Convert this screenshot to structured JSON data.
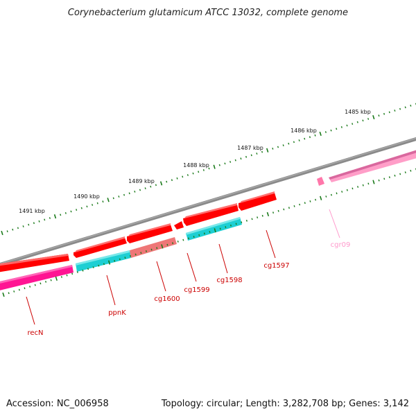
{
  "title": "Corynebacterium glutamicum ATCC 13032, complete genome",
  "footer": {
    "accession": "Accession: NC_006958",
    "summary": "Topology: circular; Length: 3,282,708 bp; Genes: 3,142"
  },
  "colors": {
    "backbone": "#808080",
    "tick": "#1a7a1a",
    "cds": "#ff0000",
    "cds_muted": "#ee7777",
    "cyan": "#1ecfd3",
    "magenta": "#ff1493",
    "pink": "#ff9ec8",
    "label_red": "#cc0000",
    "label_pink": "#ff99cc"
  },
  "kbp_labels": [
    "1491 kbp",
    "1490 kbp",
    "1489 kbp",
    "1488 kbp",
    "1487 kbp",
    "1486 kbp",
    "1485 kbp"
  ],
  "genes": [
    {
      "id": "recN",
      "label": "recN",
      "color": "label_red"
    },
    {
      "id": "ppnK",
      "label": "ppnK",
      "color": "label_red"
    },
    {
      "id": "cg1600",
      "label": "cg1600",
      "color": "label_red"
    },
    {
      "id": "cg1599",
      "label": "cg1599",
      "color": "label_red"
    },
    {
      "id": "cg1598",
      "label": "cg1598",
      "color": "label_red"
    },
    {
      "id": "cg1597",
      "label": "cg1597",
      "color": "label_red"
    },
    {
      "id": "cgr09",
      "label": "cgr09",
      "color": "label_pink"
    }
  ]
}
